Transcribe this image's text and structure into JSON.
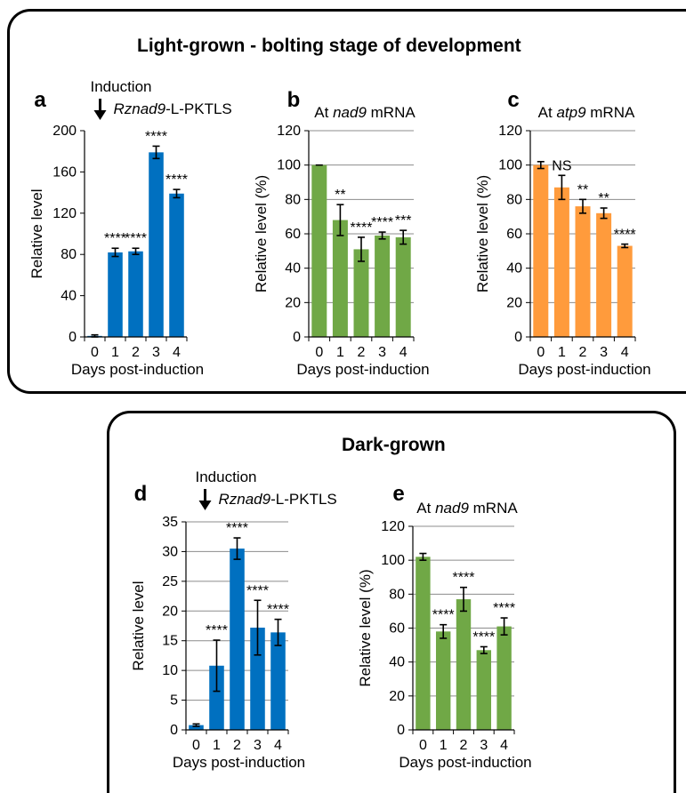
{
  "sections": {
    "top_title": "Light-grown - bolting stage of development",
    "bottom_title": "Dark-grown"
  },
  "chart_data": [
    {
      "panel": "a",
      "type": "bar",
      "color": "#0070c0",
      "title": "",
      "induction_label": "Induction",
      "construct_label": [
        "Rznad9",
        "-L-PKTLS"
      ],
      "categories": [
        "0",
        "1",
        "2",
        "3",
        "4"
      ],
      "values": [
        1,
        82,
        83,
        179,
        139
      ],
      "errors": [
        1,
        4,
        3,
        6,
        4
      ],
      "significance": [
        "",
        "****",
        "****",
        "****",
        "****"
      ],
      "ylabel": "Relative level",
      "xlabel": "Days post-induction",
      "ylim": [
        0,
        200
      ],
      "yticks": [
        "0",
        "40",
        "80",
        "120",
        "160",
        "200"
      ],
      "grid": false
    },
    {
      "panel": "b",
      "type": "bar",
      "color": "#70a846",
      "title": [
        "At ",
        "nad9",
        " mRNA"
      ],
      "categories": [
        "0",
        "1",
        "2",
        "3",
        "4"
      ],
      "values": [
        100,
        68,
        51,
        59,
        58
      ],
      "errors": [
        0,
        9,
        7,
        2,
        4
      ],
      "significance": [
        "",
        "**",
        "****",
        "****",
        "***"
      ],
      "ylabel": "Relative level (%)",
      "xlabel": "Days post-induction",
      "ylim": [
        0,
        120
      ],
      "yticks": [
        "0",
        "20",
        "40",
        "60",
        "80",
        "100",
        "120"
      ],
      "grid": true
    },
    {
      "panel": "c",
      "type": "bar",
      "color": "#ff9b3c",
      "title": [
        "At ",
        "atp9",
        " mRNA"
      ],
      "categories": [
        "0",
        "1",
        "2",
        "3",
        "4"
      ],
      "values": [
        100,
        87,
        76,
        72,
        53
      ],
      "errors": [
        2,
        7,
        4,
        3,
        1
      ],
      "significance": [
        "",
        "NS",
        "**",
        "**",
        "****"
      ],
      "ylabel": "Relative level (%)",
      "xlabel": "Days post-induction",
      "ylim": [
        0,
        120
      ],
      "yticks": [
        "0",
        "20",
        "40",
        "60",
        "80",
        "100",
        "120"
      ],
      "grid": true
    },
    {
      "panel": "d",
      "type": "bar",
      "color": "#0070c0",
      "title": "",
      "induction_label": "Induction",
      "construct_label": [
        "Rznad9",
        "-L-PKTLS"
      ],
      "categories": [
        "0",
        "1",
        "2",
        "3",
        "4"
      ],
      "values": [
        0.8,
        10.8,
        30.5,
        17.2,
        16.4
      ],
      "errors": [
        0.2,
        4.3,
        1.8,
        4.6,
        2.2
      ],
      "significance": [
        "",
        "****",
        "****",
        "****",
        "****"
      ],
      "ylabel": "Relative level",
      "xlabel": "Days post-induction",
      "ylim": [
        0,
        35
      ],
      "yticks": [
        "0",
        "5",
        "10",
        "15",
        "20",
        "25",
        "30",
        "35"
      ],
      "grid": true
    },
    {
      "panel": "e",
      "type": "bar",
      "color": "#70a846",
      "title": [
        "At ",
        "nad9",
        " mRNA"
      ],
      "categories": [
        "0",
        "1",
        "2",
        "3",
        "4"
      ],
      "values": [
        102,
        58,
        77,
        47,
        61
      ],
      "errors": [
        2,
        4,
        7,
        2,
        5
      ],
      "significance": [
        "",
        "****",
        "****",
        "****",
        "****"
      ],
      "ylabel": "Relative level (%)",
      "xlabel": "Days post-induction",
      "ylim": [
        0,
        120
      ],
      "yticks": [
        "0",
        "20",
        "40",
        "60",
        "80",
        "100",
        "120"
      ],
      "grid": true
    }
  ]
}
